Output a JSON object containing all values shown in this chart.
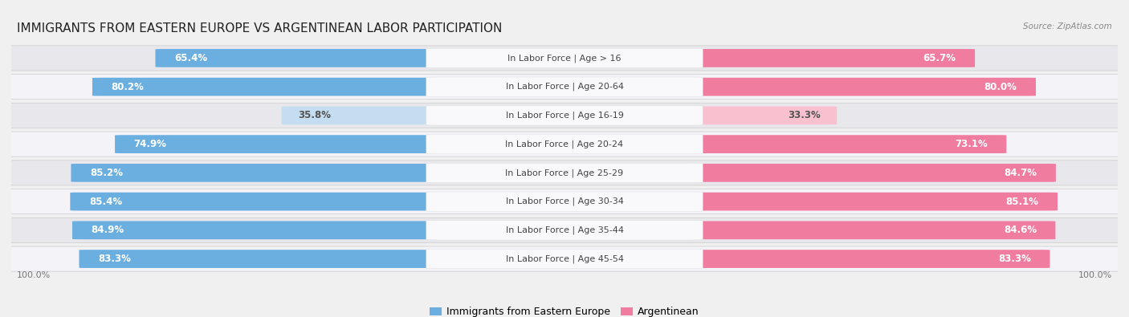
{
  "title": "IMMIGRANTS FROM EASTERN EUROPE VS ARGENTINEAN LABOR PARTICIPATION",
  "source": "Source: ZipAtlas.com",
  "categories": [
    "In Labor Force | Age > 16",
    "In Labor Force | Age 20-64",
    "In Labor Force | Age 16-19",
    "In Labor Force | Age 20-24",
    "In Labor Force | Age 25-29",
    "In Labor Force | Age 30-34",
    "In Labor Force | Age 35-44",
    "In Labor Force | Age 45-54"
  ],
  "eastern_europe": [
    65.4,
    80.2,
    35.8,
    74.9,
    85.2,
    85.4,
    84.9,
    83.3
  ],
  "argentinean": [
    65.7,
    80.0,
    33.3,
    73.1,
    84.7,
    85.1,
    84.6,
    83.3
  ],
  "eastern_europe_color": "#6aafe0",
  "argentinean_color": "#f07ca0",
  "eastern_europe_light": "#c5ddf0",
  "argentinean_light": "#f9c0d0",
  "background_color": "#f0f0f0",
  "row_bg_even": "#e8e8ec",
  "row_bg_odd": "#f4f4f8",
  "label_bg": "#f8f8fa",
  "legend_label_eastern": "Immigrants from Eastern Europe",
  "legend_label_argentinean": "Argentinean",
  "title_fontsize": 11,
  "value_fontsize": 8.5,
  "category_fontsize": 8.0,
  "source_fontsize": 7.5,
  "small_threshold": 50
}
